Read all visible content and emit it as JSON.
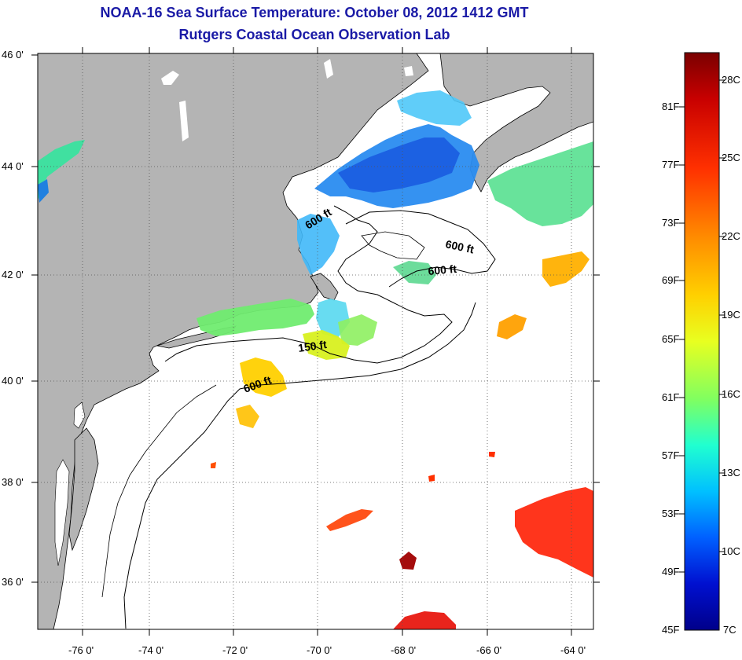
{
  "header": {
    "title": "NOAA-16 Sea Surface Temperature:  October 08, 2012 1412 GMT",
    "subtitle": "Rutgers Coastal Ocean Observation Lab"
  },
  "map": {
    "latitude_labels": [
      "46 0'",
      "44 0'",
      "42 0'",
      "40 0'",
      "38 0'",
      "36 0'"
    ],
    "longitude_labels": [
      "-76 0'",
      "-74 0'",
      "-72 0'",
      "-70 0'",
      "-68 0'",
      "-66 0'",
      "-64 0'"
    ],
    "contour_labels": [
      "600 ft",
      "600 ft",
      "600 ft",
      "150 ft",
      "600 ft"
    ],
    "land_color": "#b4b4b4",
    "ocean_nodata_color": "#ffffff"
  },
  "colorbar": {
    "fahrenheit_labels": [
      "81F",
      "77F",
      "73F",
      "69F",
      "65F",
      "61F",
      "57F",
      "53F",
      "49F",
      "45F"
    ],
    "celsius_labels": [
      "28C",
      "25C",
      "22C",
      "19C",
      "16C",
      "13C",
      "10C",
      "7C"
    ],
    "colors": [
      "#7a0000",
      "#c80000",
      "#ff3000",
      "#ff8c00",
      "#ffd000",
      "#e8ff20",
      "#80ff60",
      "#20ffd0",
      "#00c0ff",
      "#0060ff",
      "#0010d0",
      "#00008a"
    ]
  }
}
